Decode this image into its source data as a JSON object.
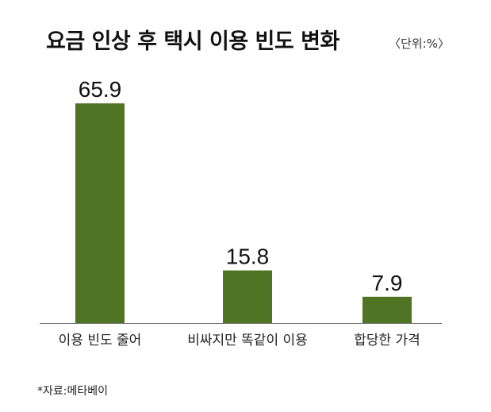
{
  "chart_data": {
    "type": "bar",
    "title": "요금 인상 후 택시 이용 빈도 변화",
    "unit": "〈단위:%〉",
    "categories": [
      "이용 빈도 줄어",
      "비싸지만 똑같이 이용",
      "합당한 가격"
    ],
    "values": [
      65.9,
      15.8,
      7.9
    ],
    "value_labels": [
      "65.9",
      "15.8",
      "7.9"
    ],
    "xlabel": "",
    "ylabel": "",
    "ylim": [
      0,
      70
    ],
    "grid": false,
    "legend": "none",
    "bar_color": "#4e7424",
    "source": "*자료:메타베이"
  }
}
